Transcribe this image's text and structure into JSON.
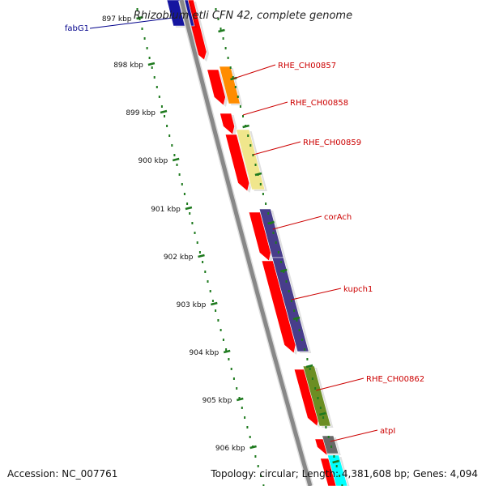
{
  "title": "Rhizobium etli CFN 42, complete genome",
  "accession_text": "Accession: NC_007761",
  "topology_text": "Topology: circular; Length: 4,381,608 bp; Genes: 4,094",
  "colors": {
    "backbone": "#888888",
    "tick": "#1e7a1e",
    "gene_label_default": "#cc0000",
    "gene_label_fabG1": "#00008b",
    "leader_line_default": "#cc0000",
    "leader_line_fabG1": "#00008b"
  },
  "ticks": [
    {
      "label": "897 kbp"
    },
    {
      "label": "898 kbp"
    },
    {
      "label": "899 kbp"
    },
    {
      "label": "900 kbp"
    },
    {
      "label": "901 kbp"
    },
    {
      "label": "902 kbp"
    },
    {
      "label": "903 kbp"
    },
    {
      "label": "904 kbp"
    },
    {
      "label": "905 kbp"
    },
    {
      "label": "906 kbp"
    }
  ],
  "features": [
    {
      "label": "fabG1",
      "color": "#1515a0"
    },
    {
      "label": "RHE_CH00857",
      "color": "#ff8c00"
    },
    {
      "label": "RHE_CH00858",
      "color": "#ff0000"
    },
    {
      "label": "RHE_CH00859",
      "color": "#f0e68c"
    },
    {
      "label": "corAch",
      "color": "#483d8b"
    },
    {
      "label": "kupch1",
      "color": "#483d8b"
    },
    {
      "label": "RHE_CH00862",
      "color": "#6b8e23"
    },
    {
      "label": "atpI",
      "color": "#696969"
    }
  ]
}
